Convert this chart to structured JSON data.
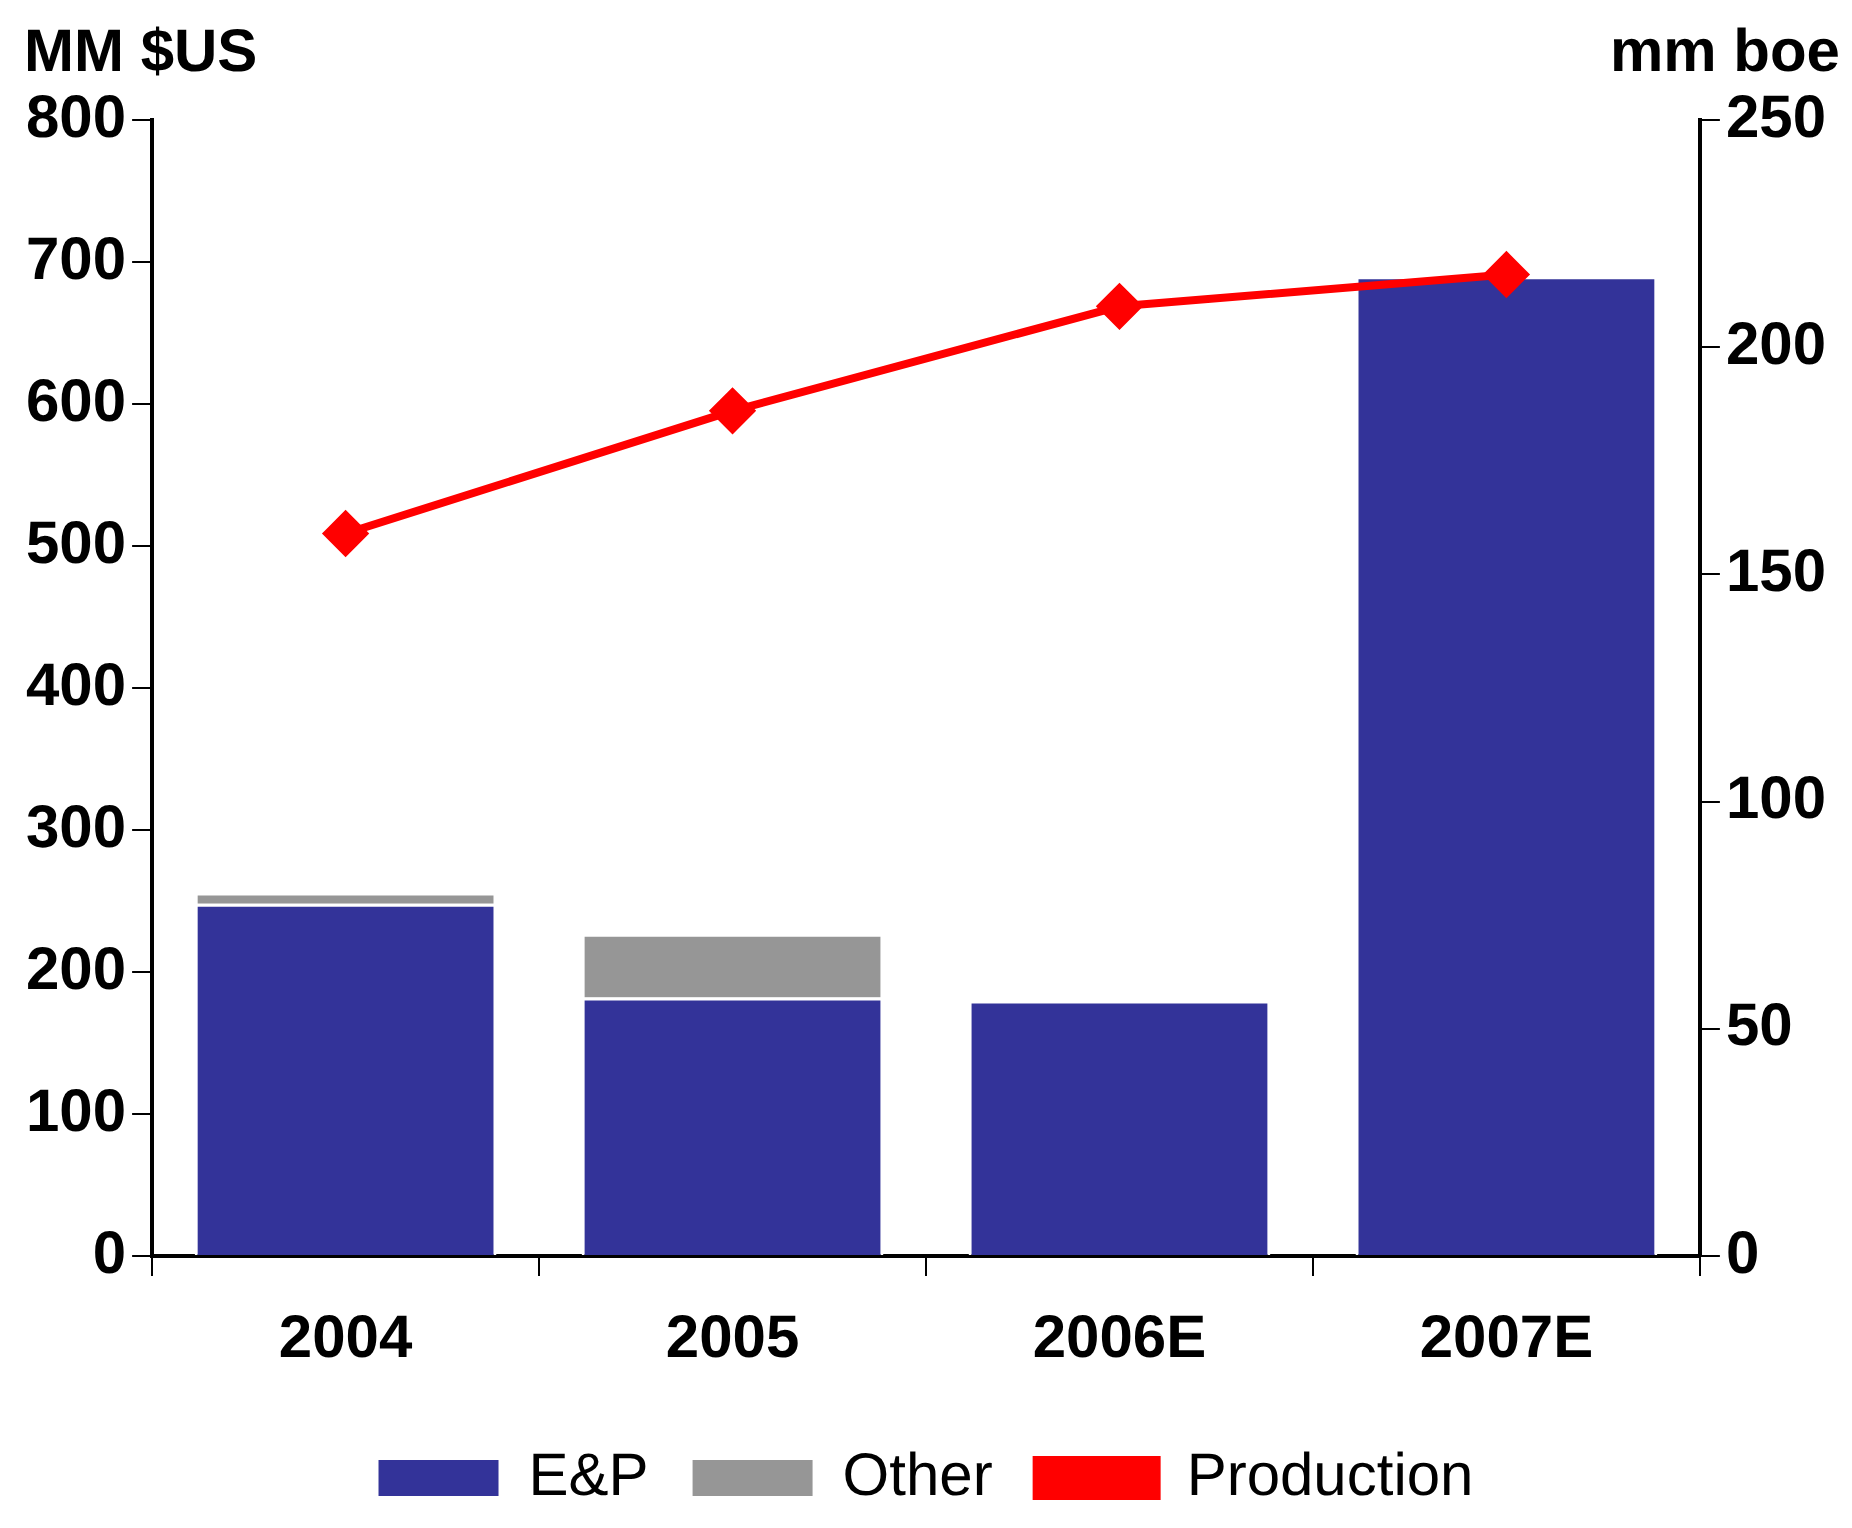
{
  "chart_data": {
    "type": "bar",
    "stacked": true,
    "ylabel": "MM $US",
    "y2label": "mm boe",
    "categories": [
      "2004",
      "2005",
      "2006E",
      "2007E"
    ],
    "series": [
      {
        "name": "E&P",
        "color": "#333399",
        "values": [
          248,
          182,
          180,
          690
        ]
      },
      {
        "name": "Other",
        "color": "#969696",
        "values": [
          8,
          45,
          null,
          null
        ]
      },
      {
        "name": "Production",
        "type": "line",
        "axis": "y2",
        "color": "#ff0000",
        "values": [
          159,
          186,
          209,
          216
        ]
      }
    ],
    "ylim": [
      0,
      800
    ],
    "yticks": [
      0,
      100,
      200,
      300,
      400,
      500,
      600,
      700,
      800
    ],
    "y2lim": [
      0,
      250
    ],
    "y2ticks": [
      0,
      50,
      100,
      150,
      200,
      250
    ],
    "grid": false,
    "legend": "bottom",
    "marker": "diamond",
    "line_style": "solid"
  }
}
